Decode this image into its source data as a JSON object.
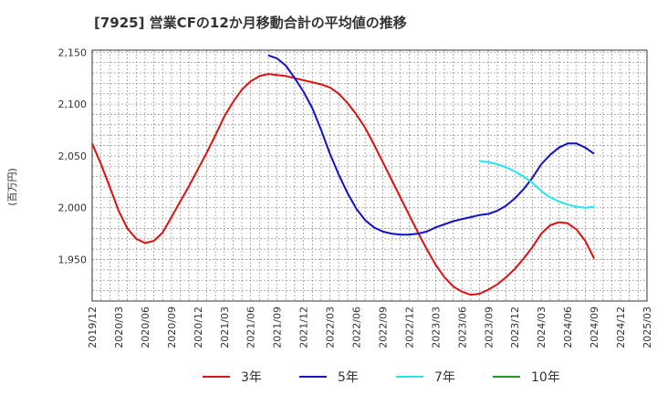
{
  "chart_data": {
    "type": "line",
    "title": "[7925]  営業CFの12か月移動合計の平均値の推移",
    "ylabel": "(百万円)",
    "xlabel": "",
    "ylim": [
      1910,
      2152
    ],
    "yticks": [
      1950,
      2000,
      2050,
      2100,
      2150
    ],
    "ytick_labels": [
      "1,950",
      "2,000",
      "2,050",
      "2,100",
      "2,150"
    ],
    "xlim": [
      "2019/12",
      "2025/03"
    ],
    "xtick_labels": [
      "2019/12",
      "2020/03",
      "2020/06",
      "2020/09",
      "2020/12",
      "2021/03",
      "2021/06",
      "2021/09",
      "2021/12",
      "2022/03",
      "2022/06",
      "2022/09",
      "2022/12",
      "2023/03",
      "2023/06",
      "2023/09",
      "2023/12",
      "2024/03",
      "2024/06",
      "2024/09",
      "2024/12",
      "2025/03"
    ],
    "grid": true,
    "legend_position": "bottom",
    "series": [
      {
        "name": "3年",
        "color": "#dd1111",
        "points": [
          [
            "2019/12",
            2062
          ],
          [
            "2020/01",
            2042
          ],
          [
            "2020/02",
            2020
          ],
          [
            "2020/03",
            1997
          ],
          [
            "2020/04",
            1980
          ],
          [
            "2020/05",
            1970
          ],
          [
            "2020/06",
            1966
          ],
          [
            "2020/07",
            1968
          ],
          [
            "2020/08",
            1976
          ],
          [
            "2020/09",
            1991
          ],
          [
            "2020/10",
            2006
          ],
          [
            "2020/11",
            2021
          ],
          [
            "2020/12",
            2037
          ],
          [
            "2021/01",
            2053
          ],
          [
            "2021/02",
            2070
          ],
          [
            "2021/03",
            2088
          ],
          [
            "2021/04",
            2102
          ],
          [
            "2021/05",
            2114
          ],
          [
            "2021/06",
            2122
          ],
          [
            "2021/07",
            2127
          ],
          [
            "2021/08",
            2129
          ],
          [
            "2021/09",
            2128
          ],
          [
            "2021/10",
            2127
          ],
          [
            "2021/11",
            2125
          ],
          [
            "2021/12",
            2123
          ],
          [
            "2022/01",
            2121
          ],
          [
            "2022/02",
            2119
          ],
          [
            "2022/03",
            2116
          ],
          [
            "2022/04",
            2110
          ],
          [
            "2022/05",
            2101
          ],
          [
            "2022/06",
            2090
          ],
          [
            "2022/07",
            2077
          ],
          [
            "2022/08",
            2061
          ],
          [
            "2022/09",
            2044
          ],
          [
            "2022/10",
            2027
          ],
          [
            "2022/11",
            2010
          ],
          [
            "2022/12",
            1993
          ],
          [
            "2023/01",
            1976
          ],
          [
            "2023/02",
            1960
          ],
          [
            "2023/03",
            1945
          ],
          [
            "2023/04",
            1933
          ],
          [
            "2023/05",
            1924
          ],
          [
            "2023/06",
            1919
          ],
          [
            "2023/07",
            1916
          ],
          [
            "2023/08",
            1917
          ],
          [
            "2023/09",
            1921
          ],
          [
            "2023/10",
            1926
          ],
          [
            "2023/11",
            1933
          ],
          [
            "2023/12",
            1941
          ],
          [
            "2024/01",
            1951
          ],
          [
            "2024/02",
            1962
          ],
          [
            "2024/03",
            1975
          ],
          [
            "2024/04",
            1983
          ],
          [
            "2024/05",
            1986
          ],
          [
            "2024/06",
            1985
          ],
          [
            "2024/07",
            1979
          ],
          [
            "2024/08",
            1968
          ],
          [
            "2024/09",
            1951
          ]
        ]
      },
      {
        "name": "5年",
        "color": "#1111cc",
        "points": [
          [
            "2021/08",
            2147
          ],
          [
            "2021/09",
            2144
          ],
          [
            "2021/10",
            2137
          ],
          [
            "2021/11",
            2125
          ],
          [
            "2021/12",
            2112
          ],
          [
            "2022/01",
            2096
          ],
          [
            "2022/02",
            2075
          ],
          [
            "2022/03",
            2052
          ],
          [
            "2022/04",
            2032
          ],
          [
            "2022/05",
            2014
          ],
          [
            "2022/06",
            1999
          ],
          [
            "2022/07",
            1988
          ],
          [
            "2022/08",
            1981
          ],
          [
            "2022/09",
            1977
          ],
          [
            "2022/10",
            1975
          ],
          [
            "2022/11",
            1974
          ],
          [
            "2022/12",
            1974
          ],
          [
            "2023/01",
            1975
          ],
          [
            "2023/02",
            1977
          ],
          [
            "2023/03",
            1981
          ],
          [
            "2023/04",
            1984
          ],
          [
            "2023/05",
            1987
          ],
          [
            "2023/06",
            1989
          ],
          [
            "2023/07",
            1991
          ],
          [
            "2023/08",
            1993
          ],
          [
            "2023/09",
            1994
          ],
          [
            "2023/10",
            1997
          ],
          [
            "2023/11",
            2002
          ],
          [
            "2023/12",
            2009
          ],
          [
            "2024/01",
            2018
          ],
          [
            "2024/02",
            2029
          ],
          [
            "2024/03",
            2042
          ],
          [
            "2024/04",
            2051
          ],
          [
            "2024/05",
            2058
          ],
          [
            "2024/06",
            2062
          ],
          [
            "2024/07",
            2062
          ],
          [
            "2024/08",
            2058
          ],
          [
            "2024/09",
            2052
          ]
        ]
      },
      {
        "name": "7年",
        "color": "#22e5ee",
        "points": [
          [
            "2023/08",
            2045
          ],
          [
            "2023/09",
            2044
          ],
          [
            "2023/10",
            2042
          ],
          [
            "2023/11",
            2039
          ],
          [
            "2023/12",
            2035
          ],
          [
            "2024/01",
            2030
          ],
          [
            "2024/02",
            2024
          ],
          [
            "2024/03",
            2016
          ],
          [
            "2024/04",
            2010
          ],
          [
            "2024/05",
            2006
          ],
          [
            "2024/06",
            2003
          ],
          [
            "2024/07",
            2001
          ],
          [
            "2024/08",
            2000
          ],
          [
            "2024/09",
            2001
          ]
        ]
      },
      {
        "name": "10年",
        "color": "#229922",
        "points": []
      }
    ]
  }
}
